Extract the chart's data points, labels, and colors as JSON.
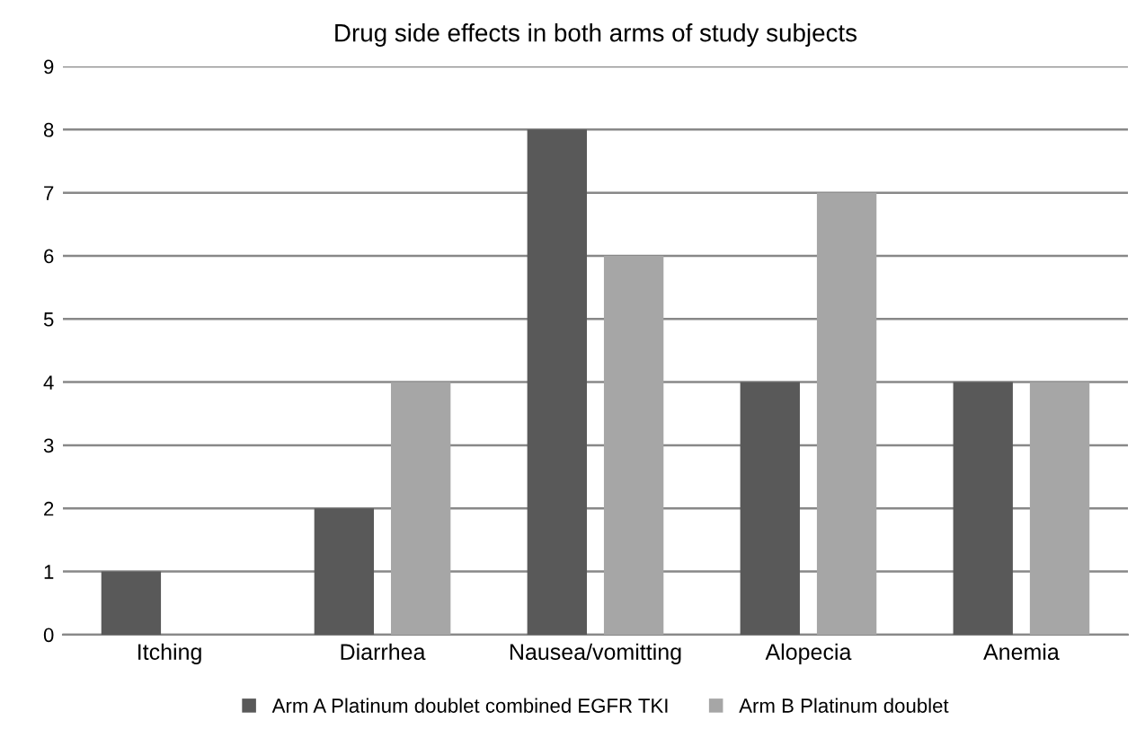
{
  "chart_data": {
    "type": "bar",
    "title": "Drug side effects in both arms of study subjects",
    "categories": [
      "Itching",
      "Diarrhea",
      "Nausea/vomitting",
      "Alopecia",
      "Anemia"
    ],
    "series": [
      {
        "name": "Arm A Platinum doublet combined EGFR TKI",
        "color": "#595959",
        "values": [
          1,
          2,
          8,
          4,
          4
        ]
      },
      {
        "name": "Arm B Platinum doublet",
        "color": "#a6a6a6",
        "values": [
          0,
          4,
          6,
          7,
          4
        ]
      }
    ],
    "ylim": [
      0,
      9
    ],
    "yticks": [
      0,
      1,
      2,
      3,
      4,
      5,
      6,
      7,
      8,
      9
    ],
    "grid": "y",
    "legend": "bottom"
  }
}
